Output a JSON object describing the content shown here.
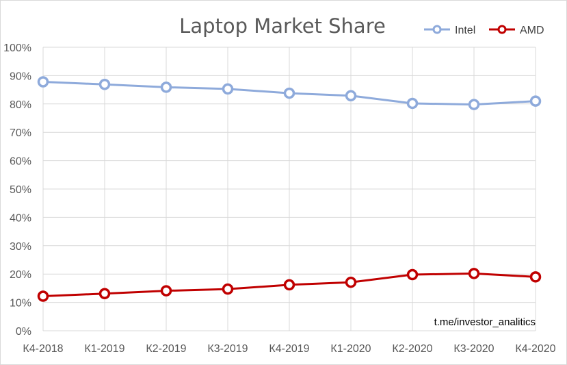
{
  "chart_data": {
    "type": "line",
    "title": "Laptop Market Share",
    "categories": [
      "К4-2018",
      "К1-2019",
      "К2-2019",
      "К3-2019",
      "К4-2019",
      "К1-2020",
      "К2-2020",
      "К3-2020",
      "К4-2020"
    ],
    "series": [
      {
        "name": "Intel",
        "color": "#8eaadb",
        "values": [
          87.8,
          86.9,
          85.9,
          85.3,
          83.8,
          82.9,
          80.2,
          79.8,
          81.0
        ]
      },
      {
        "name": "AMD",
        "color": "#c00000",
        "values": [
          12.2,
          13.1,
          14.1,
          14.7,
          16.2,
          17.1,
          19.8,
          20.2,
          19.0
        ]
      }
    ],
    "ylim": [
      0,
      100
    ],
    "y_ticks": [
      "0%",
      "10%",
      "20%",
      "30%",
      "40%",
      "50%",
      "60%",
      "70%",
      "80%",
      "90%",
      "100%"
    ],
    "grid": true,
    "legend_position": "top-right",
    "xlabel": "",
    "ylabel": ""
  },
  "annotation": "t.me/investor_analitics"
}
